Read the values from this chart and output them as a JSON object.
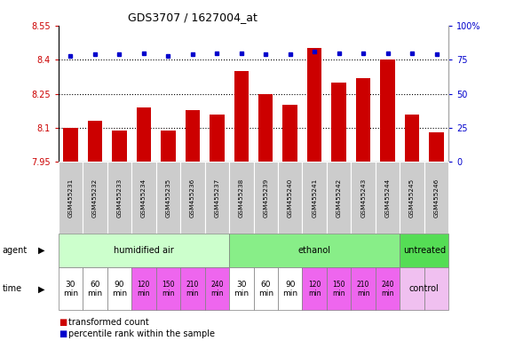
{
  "title": "GDS3707 / 1627004_at",
  "samples": [
    "GSM455231",
    "GSM455232",
    "GSM455233",
    "GSM455234",
    "GSM455235",
    "GSM455236",
    "GSM455237",
    "GSM455238",
    "GSM455239",
    "GSM455240",
    "GSM455241",
    "GSM455242",
    "GSM455243",
    "GSM455244",
    "GSM455245",
    "GSM455246"
  ],
  "bar_values": [
    8.1,
    8.13,
    8.09,
    8.19,
    8.09,
    8.18,
    8.16,
    8.35,
    8.25,
    8.2,
    8.45,
    8.3,
    8.32,
    8.4,
    8.16,
    8.08
  ],
  "percentile_values": [
    78,
    79,
    79,
    80,
    78,
    79,
    80,
    80,
    79,
    79,
    81,
    80,
    80,
    80,
    80,
    79
  ],
  "bar_color": "#cc0000",
  "percentile_color": "#0000cc",
  "ylim_left": [
    7.95,
    8.55
  ],
  "ylim_right": [
    0,
    100
  ],
  "yticks_left": [
    7.95,
    8.1,
    8.25,
    8.4,
    8.55
  ],
  "yticks_right": [
    0,
    25,
    50,
    75,
    100
  ],
  "ytick_labels_left": [
    "7.95",
    "8.1",
    "8.25",
    "8.4",
    "8.55"
  ],
  "ytick_labels_right": [
    "0",
    "25",
    "50",
    "75",
    "100%"
  ],
  "grid_values": [
    8.1,
    8.25,
    8.4
  ],
  "agent_groups": [
    {
      "label": "humidified air",
      "start": 0,
      "end": 7,
      "color": "#ccffcc"
    },
    {
      "label": "ethanol",
      "start": 7,
      "end": 14,
      "color": "#88ee88"
    },
    {
      "label": "untreated",
      "start": 14,
      "end": 16,
      "color": "#55dd55"
    }
  ],
  "time_labels_all": [
    "30\nmin",
    "60\nmin",
    "90\nmin",
    "120\nmin",
    "150\nmin",
    "210\nmin",
    "240\nmin",
    "30\nmin",
    "60\nmin",
    "90\nmin",
    "120\nmin",
    "150\nmin",
    "210\nmin",
    "240\nmin",
    "",
    ""
  ],
  "time_colors": [
    "#ffffff",
    "#ffffff",
    "#ffffff",
    "#ee66ee",
    "#ee66ee",
    "#ee66ee",
    "#ee66ee",
    "#ffffff",
    "#ffffff",
    "#ffffff",
    "#ee66ee",
    "#ee66ee",
    "#ee66ee",
    "#ee66ee",
    "#f0c0f0",
    "#f0c0f0"
  ],
  "time_pink_indices": [
    3,
    4,
    5,
    6,
    10,
    11,
    12,
    13
  ],
  "legend_bar_label": "transformed count",
  "legend_dot_label": "percentile rank within the sample",
  "sample_bg_color": "#cccccc",
  "sample_border_color": "#999999",
  "gray_border": "#aaaaaa",
  "label_color_left": "#cc0000",
  "label_color_right": "#0000cc"
}
